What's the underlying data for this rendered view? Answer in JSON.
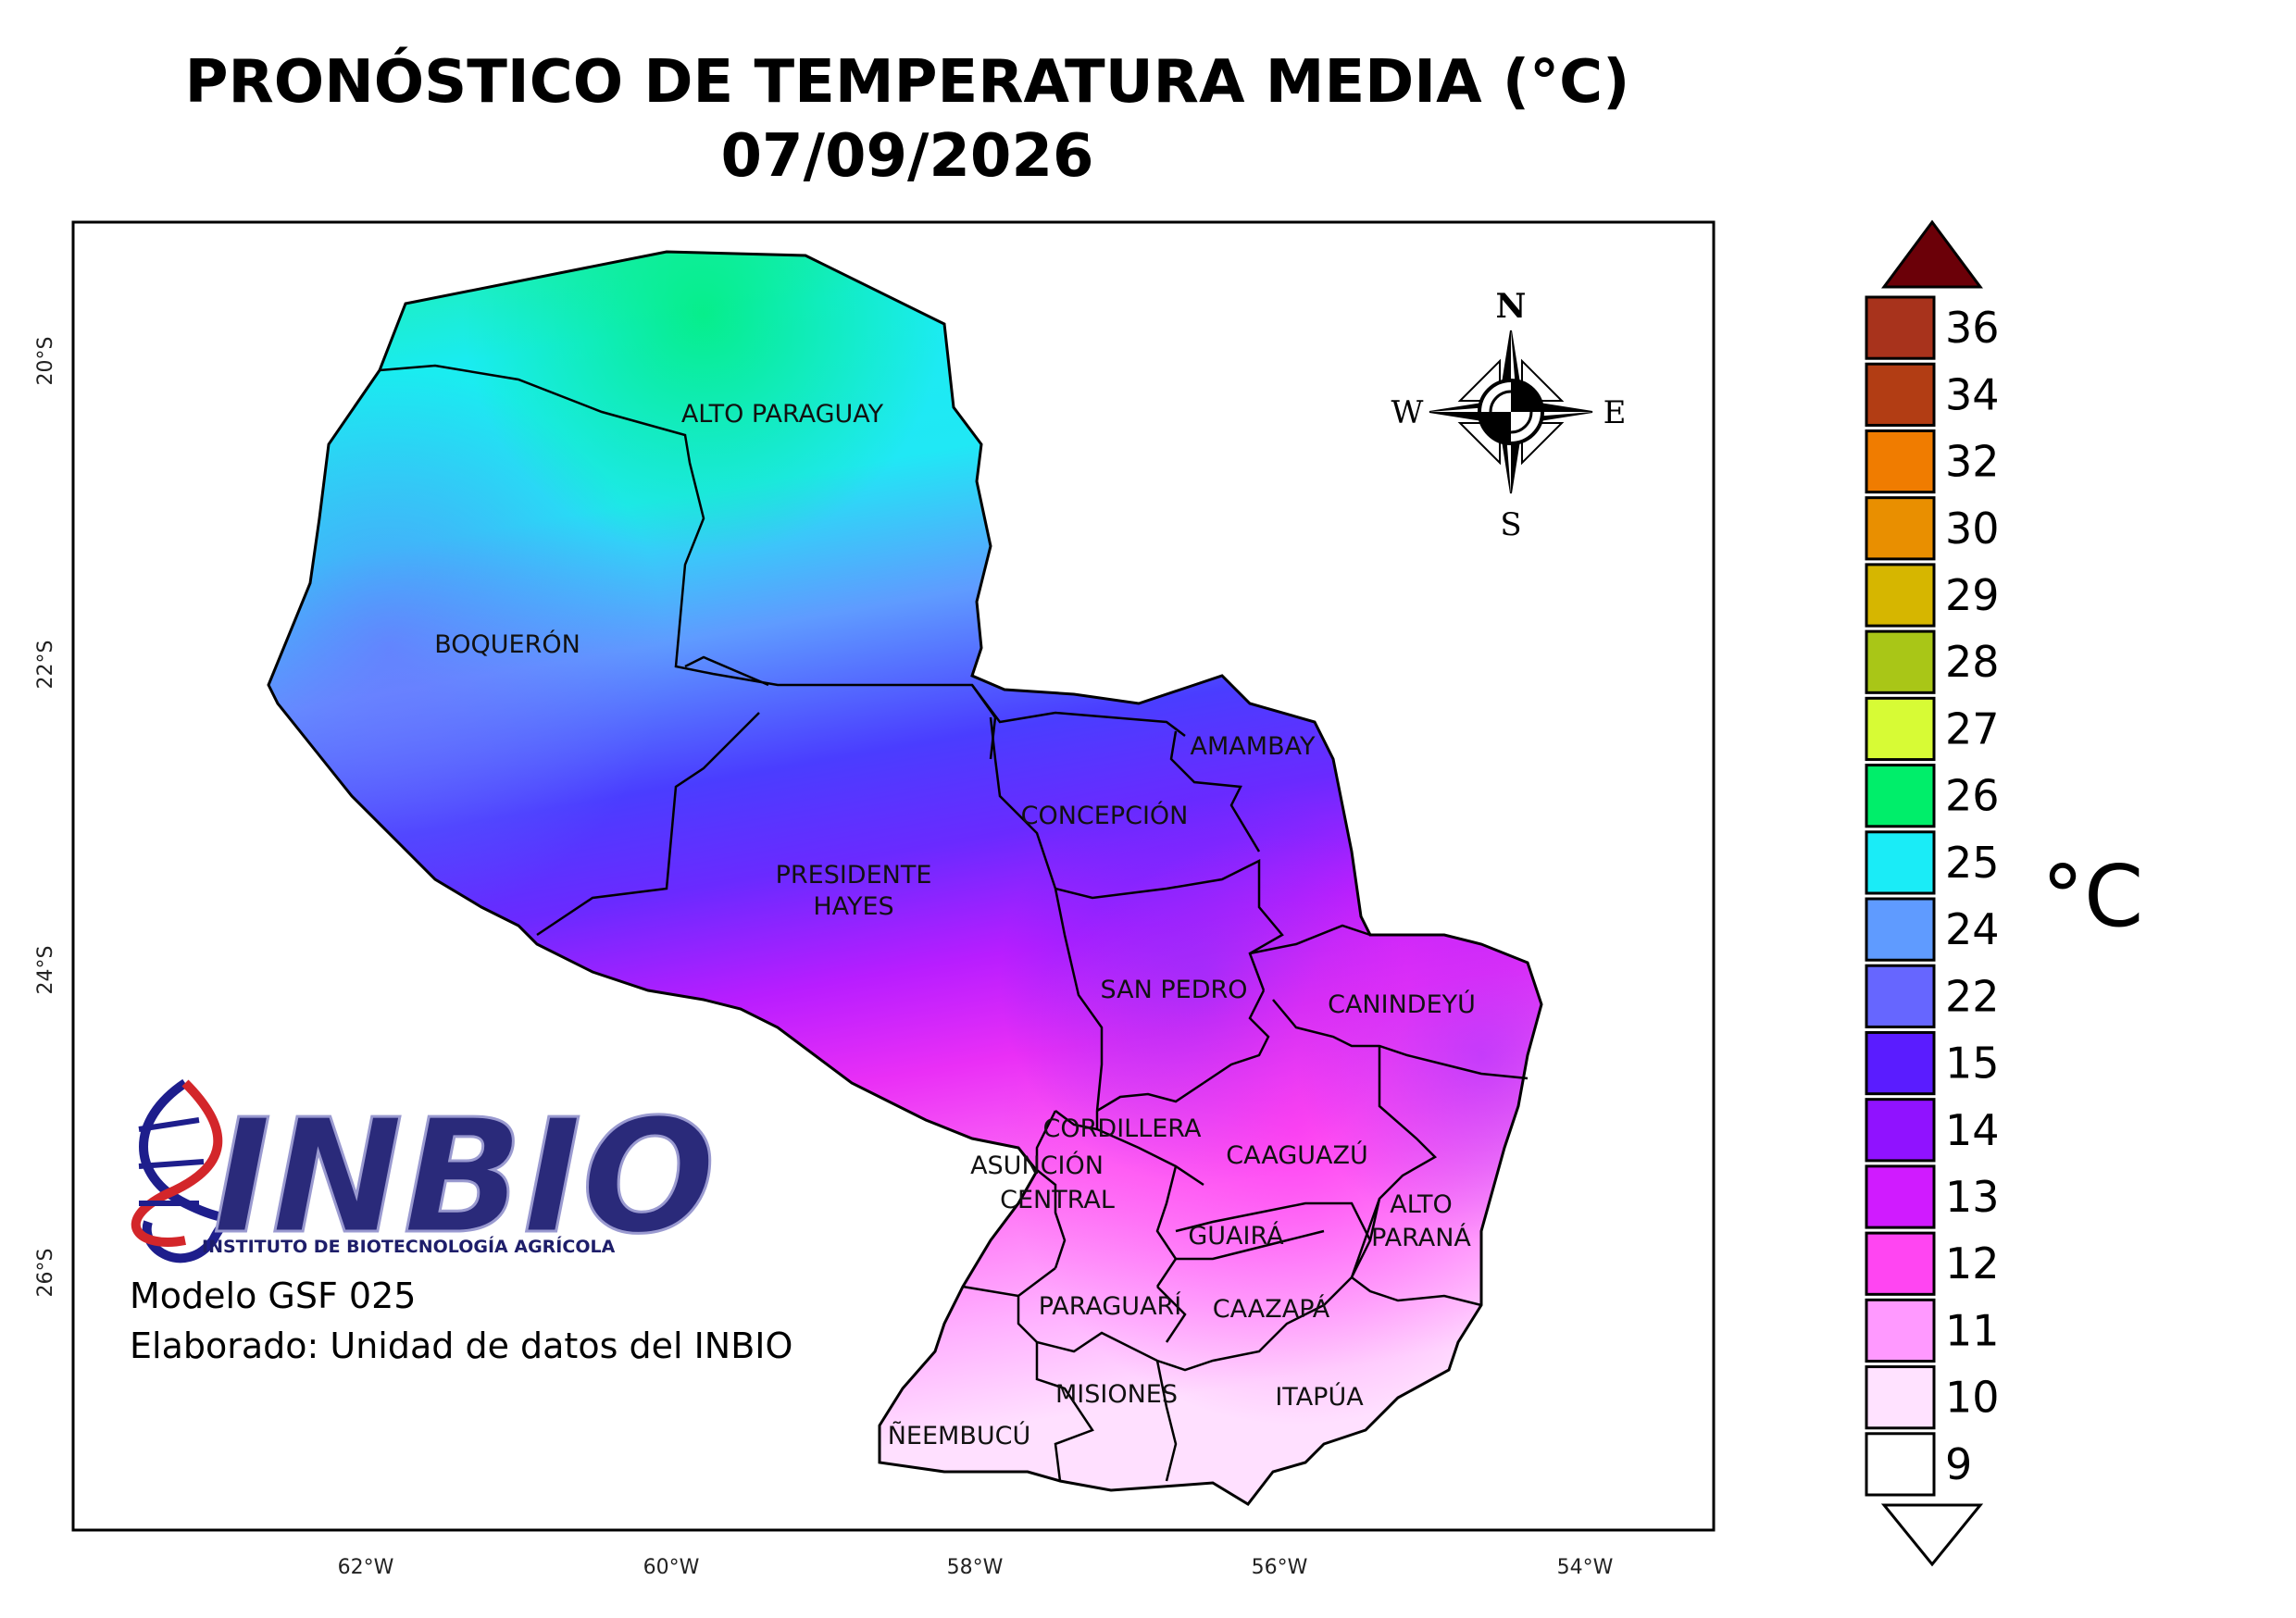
{
  "title": "PRONÓSTICO DE TEMPERATURA MEDIA (°C)",
  "date": "07/09/2026",
  "departments": [
    {
      "name": "ALTO PARAGUAY"
    },
    {
      "name": "BOQUERÓN"
    },
    {
      "name": "PRESIDENTE",
      "name2": "HAYES"
    },
    {
      "name": "CONCEPCIÓN"
    },
    {
      "name": "AMAMBAY"
    },
    {
      "name": "SAN PEDRO"
    },
    {
      "name": "CANINDEYÚ"
    },
    {
      "name": "CORDILLERA"
    },
    {
      "name": "ASUNCIÓN"
    },
    {
      "name": "CENTRAL"
    },
    {
      "name": "CAAGUAZÚ"
    },
    {
      "name": "ALTO",
      "name2": "PARANÁ"
    },
    {
      "name": "GUAIRÁ"
    },
    {
      "name": "PARAGUARÍ"
    },
    {
      "name": "CAAZAPÁ"
    },
    {
      "name": "MISIONES"
    },
    {
      "name": "ITAPÚA"
    },
    {
      "name": "ÑEEMBUCÚ"
    }
  ],
  "axes": {
    "lat_ticks": [
      "20°S",
      "22°S",
      "24°S",
      "26°S"
    ],
    "lon_ticks": [
      "62°W",
      "60°W",
      "58°W",
      "56°W",
      "54°W"
    ]
  },
  "compass": {
    "n": "N",
    "s": "S",
    "e": "E",
    "w": "W"
  },
  "logo": {
    "name": "INBIO",
    "subtitle": "INSTITUTO DE BIOTECNOLOGÍA AGRÍCOLA"
  },
  "credits": {
    "model": "Modelo GSF 025",
    "author": "Elaborado: Unidad de datos del INBIO"
  },
  "legend": {
    "unit": "°C",
    "over_color": "#6b0008",
    "under_color": "#ffffff",
    "bins": [
      {
        "label": "36",
        "color": "#a8331c"
      },
      {
        "label": "34",
        "color": "#b23d14"
      },
      {
        "label": "32",
        "color": "#f07c00"
      },
      {
        "label": "30",
        "color": "#e98f00"
      },
      {
        "label": "29",
        "color": "#d6b600"
      },
      {
        "label": "28",
        "color": "#a9c617"
      },
      {
        "label": "27",
        "color": "#d7fb35"
      },
      {
        "label": "26",
        "color": "#00ee6a"
      },
      {
        "label": "25",
        "color": "#1aecf7"
      },
      {
        "label": "24",
        "color": "#5f9bff"
      },
      {
        "label": "22",
        "color": "#6666ff"
      },
      {
        "label": "15",
        "color": "#5a1cff"
      },
      {
        "label": "14",
        "color": "#9012ff"
      },
      {
        "label": "13",
        "color": "#d01bff"
      },
      {
        "label": "12",
        "color": "#ff45f2"
      },
      {
        "label": "11",
        "color": "#ff99ff"
      },
      {
        "label": "10",
        "color": "#ffe2ff"
      },
      {
        "label": "9",
        "color": "#ffffff"
      }
    ]
  }
}
